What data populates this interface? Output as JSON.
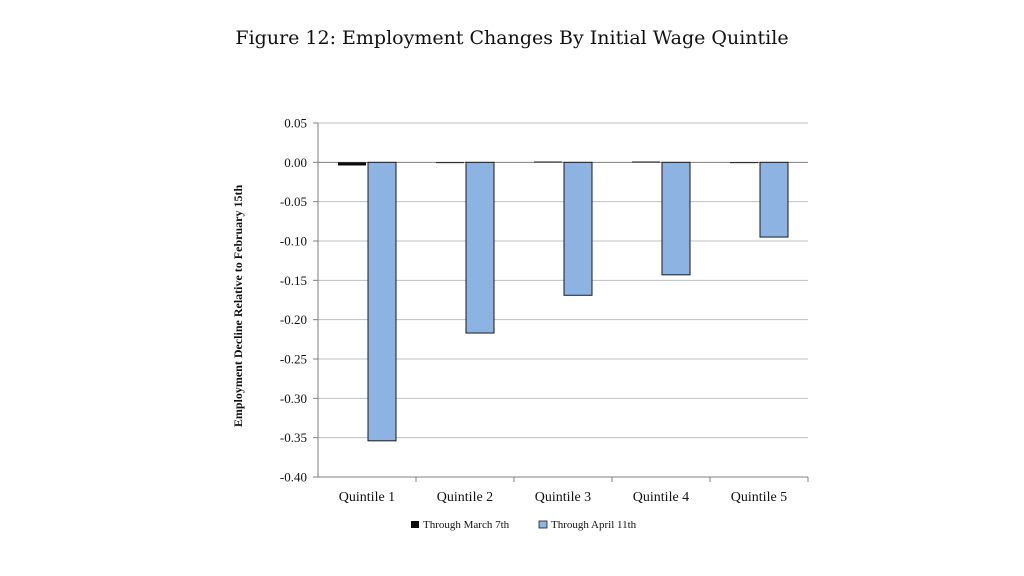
{
  "figure_title": "Figure 12: Employment Changes By Initial Wage Quintile",
  "colors": {
    "series_march": "#0a0a0a",
    "series_april": "#8db3e2",
    "bar_stroke": "#1a1a1a",
    "grid": "#bfbfbf",
    "axis": "#7f7f7f"
  },
  "chart_data": {
    "type": "bar",
    "title": "",
    "xlabel": "",
    "ylabel": "Employment Decline Relative to February 15th",
    "categories": [
      "Quintile 1",
      "Quintile 2",
      "Quintile 3",
      "Quintile 4",
      "Quintile 5"
    ],
    "series": [
      {
        "name": "Through March 7th",
        "values": [
          -0.004,
          0.0,
          0.001,
          0.001,
          -0.001
        ]
      },
      {
        "name": "Through April 11th",
        "values": [
          -0.354,
          -0.217,
          -0.169,
          -0.143,
          -0.095
        ]
      }
    ],
    "ylim": [
      -0.4,
      0.05
    ],
    "yticks": [
      "0.05",
      "0.00",
      "-0.05",
      "-0.10",
      "-0.15",
      "-0.20",
      "-0.25",
      "-0.30",
      "-0.35",
      "-0.40"
    ],
    "grid": true,
    "legend_position": "bottom"
  }
}
